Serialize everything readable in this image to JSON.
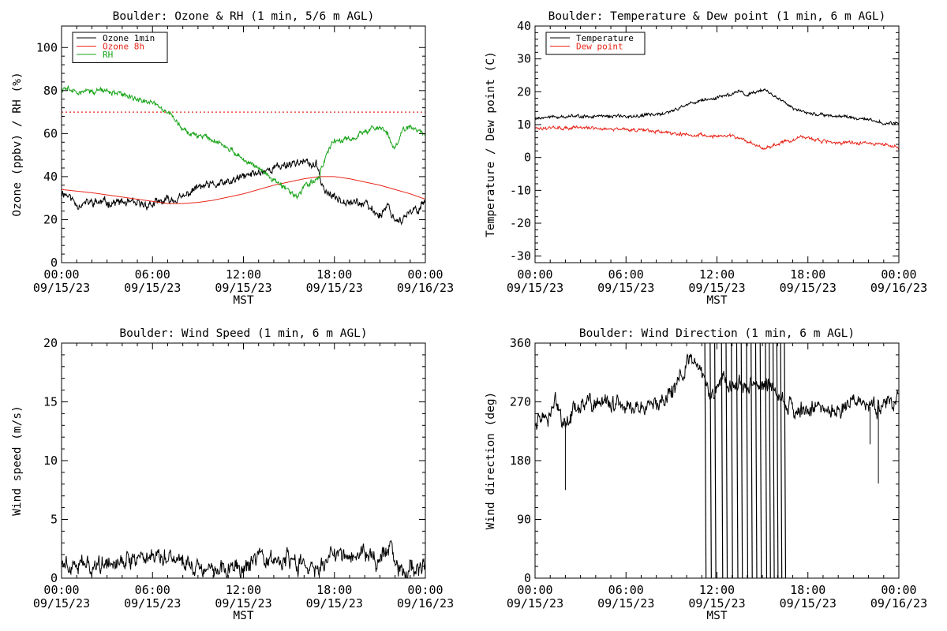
{
  "colors": {
    "black": "#000000",
    "red": "#e8261a",
    "green": "#17a317",
    "background": "#ffffff"
  },
  "chart_data": [
    {
      "id": "ozone_rh",
      "type": "line",
      "title": "Boulder: Ozone & RH (1 min, 5/6 m AGL)",
      "xlabel": "MST",
      "ylabel": "Ozone (ppbv) / RH (%)",
      "xlim_hours": [
        0,
        24
      ],
      "ylim": [
        0,
        110
      ],
      "yticks": [
        0,
        20,
        40,
        60,
        80,
        100
      ],
      "x_ticks": [
        {
          "h": 0,
          "time": "00:00",
          "date": "09/15/23"
        },
        {
          "h": 6,
          "time": "06:00",
          "date": "09/15/23"
        },
        {
          "h": 12,
          "time": "12:00",
          "date": "09/15/23"
        },
        {
          "h": 18,
          "time": "18:00",
          "date": "09/15/23"
        },
        {
          "h": 24,
          "time": "00:00",
          "date": "09/16/23"
        }
      ],
      "legend": [
        {
          "label": "Ozone 1min",
          "color": "#000000"
        },
        {
          "label": "Ozone 8h",
          "color": "#e8261a"
        },
        {
          "label": "RH",
          "color": "#17a317"
        }
      ],
      "legend_position": "top-left",
      "reference_line": {
        "y": 70,
        "color": "#e8261a",
        "style": "dotted"
      },
      "series": [
        {
          "name": "Ozone 1min",
          "color": "#000000",
          "noise": 1.4,
          "points": [
            [
              0,
              33
            ],
            [
              0.5,
              31
            ],
            [
              1,
              27
            ],
            [
              2,
              28
            ],
            [
              3,
              28
            ],
            [
              4,
              28
            ],
            [
              5,
              27
            ],
            [
              6,
              27
            ],
            [
              7,
              29
            ],
            [
              8,
              30
            ],
            [
              8.7,
              34
            ],
            [
              9,
              35
            ],
            [
              10,
              36
            ],
            [
              11,
              37
            ],
            [
              12,
              40
            ],
            [
              13,
              42
            ],
            [
              14,
              44
            ],
            [
              15,
              46
            ],
            [
              15.7,
              47
            ],
            [
              16.3,
              46
            ],
            [
              16.8,
              45
            ],
            [
              17,
              41
            ],
            [
              17.4,
              33
            ],
            [
              18,
              30
            ],
            [
              19,
              29
            ],
            [
              20,
              27
            ],
            [
              20.6,
              24
            ],
            [
              21,
              22
            ],
            [
              21.5,
              27
            ],
            [
              22,
              20
            ],
            [
              22.5,
              20
            ],
            [
              23,
              23
            ],
            [
              23.5,
              25
            ],
            [
              24,
              29
            ]
          ]
        },
        {
          "name": "Ozone 8h",
          "color": "#e8261a",
          "noise": 0,
          "points": [
            [
              0,
              34
            ],
            [
              2,
              32.5
            ],
            [
              4,
              30.5
            ],
            [
              6,
              28.5
            ],
            [
              7,
              27.5
            ],
            [
              8,
              27.5
            ],
            [
              9,
              28
            ],
            [
              10,
              29
            ],
            [
              11,
              30.5
            ],
            [
              12,
              32
            ],
            [
              13,
              34
            ],
            [
              14,
              36
            ],
            [
              15,
              37.5
            ],
            [
              16,
              39
            ],
            [
              17,
              40
            ],
            [
              18,
              40
            ],
            [
              19,
              39
            ],
            [
              20,
              37.5
            ],
            [
              21,
              36
            ],
            [
              22,
              34
            ],
            [
              23,
              32
            ],
            [
              24,
              29.5
            ]
          ]
        },
        {
          "name": "RH",
          "color": "#17a317",
          "noise": 0.9,
          "points": [
            [
              0,
              81
            ],
            [
              1,
              80
            ],
            [
              2,
              80
            ],
            [
              3,
              80
            ],
            [
              4,
              78
            ],
            [
              5,
              76
            ],
            [
              6,
              74
            ],
            [
              6.5,
              72
            ],
            [
              7,
              70
            ],
            [
              7.5,
              67
            ],
            [
              8,
              62
            ],
            [
              8.5,
              59
            ],
            [
              9,
              59
            ],
            [
              10,
              57
            ],
            [
              11,
              53
            ],
            [
              12,
              48
            ],
            [
              13,
              44
            ],
            [
              14,
              38
            ],
            [
              15,
              34
            ],
            [
              15.5,
              30
            ],
            [
              16,
              35
            ],
            [
              16.5,
              37
            ],
            [
              17,
              40
            ],
            [
              17.5,
              51
            ],
            [
              18,
              57
            ],
            [
              19,
              57
            ],
            [
              20,
              61
            ],
            [
              21,
              63
            ],
            [
              21.5,
              60
            ],
            [
              22,
              53
            ],
            [
              22.5,
              61
            ],
            [
              23,
              63
            ],
            [
              23.5,
              62
            ],
            [
              24,
              59
            ]
          ]
        }
      ]
    },
    {
      "id": "temp_dew",
      "type": "line",
      "title": "Boulder: Temperature & Dew point (1 min, 6 m AGL)",
      "xlabel": "MST",
      "ylabel": "Temperature / Dew point (C)",
      "xlim_hours": [
        0,
        24
      ],
      "ylim": [
        -32,
        40
      ],
      "yticks": [
        -30,
        -20,
        -10,
        0,
        10,
        20,
        30,
        40
      ],
      "x_ticks": [
        {
          "h": 0,
          "time": "00:00",
          "date": "09/15/23"
        },
        {
          "h": 6,
          "time": "06:00",
          "date": "09/15/23"
        },
        {
          "h": 12,
          "time": "12:00",
          "date": "09/15/23"
        },
        {
          "h": 18,
          "time": "18:00",
          "date": "09/15/23"
        },
        {
          "h": 24,
          "time": "00:00",
          "date": "09/16/23"
        }
      ],
      "legend": [
        {
          "label": "Temperature",
          "color": "#000000"
        },
        {
          "label": "Dew point",
          "color": "#e8261a"
        }
      ],
      "legend_position": "top-left",
      "series": [
        {
          "name": "Temperature",
          "color": "#000000",
          "noise": 0.35,
          "points": [
            [
              0,
              12
            ],
            [
              2,
              12.5
            ],
            [
              4,
              12.5
            ],
            [
              6,
              12.5
            ],
            [
              8,
              13
            ],
            [
              9,
              14
            ],
            [
              10,
              16
            ],
            [
              11,
              17.5
            ],
            [
              12,
              18
            ],
            [
              13,
              19.5
            ],
            [
              13.5,
              20.5
            ],
            [
              14,
              19
            ],
            [
              14.5,
              20
            ],
            [
              15,
              20.5
            ],
            [
              15.5,
              20
            ],
            [
              16,
              18
            ],
            [
              17,
              15
            ],
            [
              18,
              13.5
            ],
            [
              19,
              13
            ],
            [
              20,
              12.5
            ],
            [
              21,
              12
            ],
            [
              21.5,
              12
            ],
            [
              22,
              11.5
            ],
            [
              23,
              10.5
            ],
            [
              24,
              10.5
            ]
          ]
        },
        {
          "name": "Dew point",
          "color": "#e8261a",
          "noise": 0.35,
          "points": [
            [
              0,
              9
            ],
            [
              2,
              9
            ],
            [
              4,
              9
            ],
            [
              6,
              8.5
            ],
            [
              8,
              8
            ],
            [
              10,
              7
            ],
            [
              12,
              6.5
            ],
            [
              13,
              6.5
            ],
            [
              14,
              5
            ],
            [
              15,
              3
            ],
            [
              15.5,
              3
            ],
            [
              16,
              4.5
            ],
            [
              17,
              5
            ],
            [
              17.5,
              6.5
            ],
            [
              18,
              6
            ],
            [
              19,
              5
            ],
            [
              20,
              4.5
            ],
            [
              21,
              4.5
            ],
            [
              22,
              4.5
            ],
            [
              23,
              4
            ],
            [
              24,
              3
            ]
          ]
        }
      ]
    },
    {
      "id": "wind_speed",
      "type": "line",
      "title": "Boulder: Wind Speed (1 min, 6 m AGL)",
      "xlabel": "MST",
      "ylabel": "Wind speed (m/s)",
      "xlim_hours": [
        0,
        24
      ],
      "ylim": [
        0,
        20
      ],
      "yticks": [
        0,
        5,
        10,
        15,
        20
      ],
      "x_ticks": [
        {
          "h": 0,
          "time": "00:00",
          "date": "09/15/23"
        },
        {
          "h": 6,
          "time": "06:00",
          "date": "09/15/23"
        },
        {
          "h": 12,
          "time": "12:00",
          "date": "09/15/23"
        },
        {
          "h": 18,
          "time": "18:00",
          "date": "09/15/23"
        },
        {
          "h": 24,
          "time": "00:00",
          "date": "09/16/23"
        }
      ],
      "series": [
        {
          "name": "Wind speed",
          "color": "#000000",
          "noise": 0.55,
          "points": [
            [
              0,
              1.5
            ],
            [
              1,
              1.2
            ],
            [
              2,
              1
            ],
            [
              3,
              1.5
            ],
            [
              4,
              1.5
            ],
            [
              5,
              1.8
            ],
            [
              6,
              2
            ],
            [
              7,
              2
            ],
            [
              8,
              1.5
            ],
            [
              9,
              1
            ],
            [
              10,
              1
            ],
            [
              11,
              0.8
            ],
            [
              12,
              0.7
            ],
            [
              13,
              1.5
            ],
            [
              14,
              1.5
            ],
            [
              15,
              1.5
            ],
            [
              16,
              1
            ],
            [
              16.5,
              0.7
            ],
            [
              17,
              0.8
            ],
            [
              17.5,
              1.5
            ],
            [
              18,
              2
            ],
            [
              19,
              2
            ],
            [
              20,
              2.2
            ],
            [
              20.5,
              1.7
            ],
            [
              21,
              1.5
            ],
            [
              21.5,
              2.5
            ],
            [
              21.8,
              3.2
            ],
            [
              22,
              1.5
            ],
            [
              22.5,
              0.5
            ],
            [
              23,
              1
            ],
            [
              24,
              1
            ]
          ]
        }
      ]
    },
    {
      "id": "wind_dir",
      "type": "line",
      "title": "Boulder: Wind Direction (1 min, 6 m AGL)",
      "xlabel": "MST",
      "ylabel": "Wind direction (deg)",
      "xlim_hours": [
        0,
        24
      ],
      "ylim": [
        0,
        360
      ],
      "yticks": [
        0,
        90,
        180,
        270,
        360
      ],
      "x_ticks": [
        {
          "h": 0,
          "time": "00:00",
          "date": "09/15/23"
        },
        {
          "h": 6,
          "time": "06:00",
          "date": "09/15/23"
        },
        {
          "h": 12,
          "time": "12:00",
          "date": "09/15/23"
        },
        {
          "h": 18,
          "time": "18:00",
          "date": "09/15/23"
        },
        {
          "h": 24,
          "time": "00:00",
          "date": "09/16/23"
        }
      ],
      "series": [
        {
          "name": "Wind direction",
          "color": "#000000",
          "noise": 9,
          "points": [
            [
              0,
              240
            ],
            [
              1,
              245
            ],
            [
              1.3,
              275
            ],
            [
              1.6,
              255
            ],
            [
              1.8,
              225
            ],
            [
              2,
              240
            ],
            [
              2.5,
              255
            ],
            [
              3,
              262
            ],
            [
              4,
              270
            ],
            [
              5,
              265
            ],
            [
              6,
              262
            ],
            [
              7,
              260
            ],
            [
              8,
              262
            ],
            [
              8.5,
              272
            ],
            [
              9,
              285
            ],
            [
              9.5,
              305
            ],
            [
              10,
              330
            ],
            [
              10.5,
              340
            ],
            [
              11,
              320
            ],
            [
              11.3,
              300
            ],
            [
              11.5,
              275
            ],
            [
              12,
              290
            ],
            [
              12.5,
              305
            ],
            [
              13,
              290
            ],
            [
              13.5,
              300
            ],
            [
              14,
              285
            ],
            [
              14.5,
              300
            ],
            [
              15,
              295
            ],
            [
              15.5,
              295
            ],
            [
              16,
              280
            ],
            [
              16.5,
              265
            ],
            [
              17,
              258
            ],
            [
              18,
              258
            ],
            [
              19,
              255
            ],
            [
              20,
              258
            ],
            [
              21,
              275
            ],
            [
              21.5,
              270
            ],
            [
              22,
              262
            ],
            [
              22.5,
              262
            ],
            [
              23,
              268
            ],
            [
              24,
              275
            ]
          ]
        }
      ],
      "spikes_hours": [
        11.2,
        11.55,
        11.85,
        12.3,
        12.6,
        12.95,
        13.3,
        13.6,
        13.95,
        14.25,
        14.55,
        14.85,
        15.2,
        15.45,
        15.7,
        15.95,
        16.2,
        16.45
      ],
      "dips": [
        {
          "h": 2.0,
          "value": 135
        },
        {
          "h": 22.1,
          "value": 205
        },
        {
          "h": 22.65,
          "value": 145
        }
      ]
    }
  ]
}
